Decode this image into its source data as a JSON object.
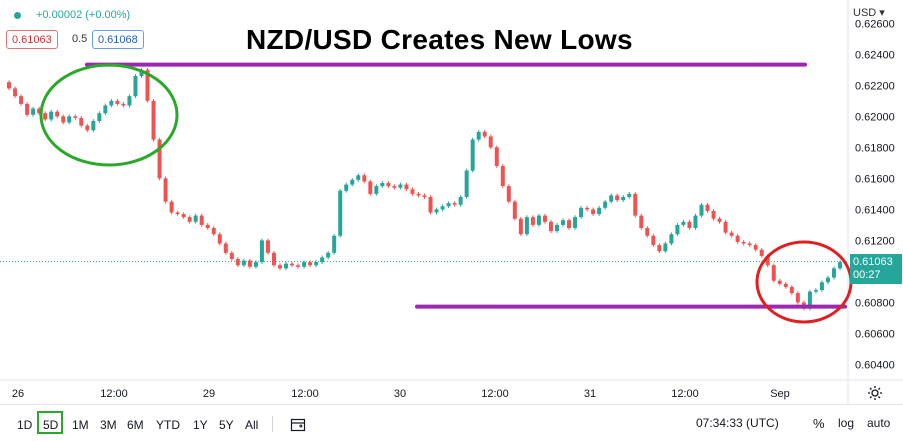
{
  "header": {
    "change": "+0.00002 (+0.00%)",
    "sell_price": "0.61063",
    "spread": "0.5",
    "buy_price": "0.61068"
  },
  "title": "NZD/USD Creates New Lows",
  "currency": "USD",
  "price_label": {
    "price": "0.61063",
    "countdown": "00:27"
  },
  "chart_data": {
    "type": "line",
    "title": "NZD/USD Creates New Lows",
    "xlabel": "",
    "ylabel": "",
    "ylim": [
      0.603,
      0.6275
    ],
    "y_ticks": [
      "0.62600",
      "0.62400",
      "0.62200",
      "0.62000",
      "0.61800",
      "0.61600",
      "0.61400",
      "0.61200",
      "0.61000",
      "0.60800",
      "0.60600",
      "0.60400"
    ],
    "x_ticks": [
      "26",
      "12:00",
      "29",
      "12:00",
      "30",
      "12:00",
      "31",
      "12:00",
      "Sep"
    ],
    "series": [
      {
        "values": [
          0.6222,
          0.6218,
          0.6213,
          0.6208,
          0.6201,
          0.6205,
          0.6202,
          0.6198,
          0.6203,
          0.62,
          0.6196,
          0.62,
          0.6199,
          0.6194,
          0.6191,
          0.6197,
          0.6202,
          0.6207,
          0.621,
          0.6208,
          0.6207,
          0.6213,
          0.6226,
          0.623,
          0.621,
          0.6185,
          0.616,
          0.6145,
          0.6138,
          0.6137,
          0.6135,
          0.6132,
          0.6136,
          0.613,
          0.6128,
          0.6124,
          0.6118,
          0.6112,
          0.6108,
          0.6104,
          0.6107,
          0.6103,
          0.6106,
          0.612,
          0.6112,
          0.6104,
          0.6102,
          0.6105,
          0.6104,
          0.6103,
          0.6106,
          0.6104,
          0.6106,
          0.6109,
          0.6112,
          0.6123,
          0.6152,
          0.6156,
          0.6159,
          0.6162,
          0.6158,
          0.615,
          0.6155,
          0.6157,
          0.6155,
          0.6154,
          0.6156,
          0.6153,
          0.615,
          0.6149,
          0.6148,
          0.6138,
          0.614,
          0.6142,
          0.6144,
          0.6143,
          0.6148,
          0.6165,
          0.6185,
          0.619,
          0.6187,
          0.618,
          0.6168,
          0.6155,
          0.6145,
          0.6134,
          0.6124,
          0.6135,
          0.613,
          0.6136,
          0.6132,
          0.6126,
          0.613,
          0.6133,
          0.6128,
          0.6135,
          0.6141,
          0.614,
          0.6137,
          0.6141,
          0.6145,
          0.6149,
          0.6146,
          0.6148,
          0.615,
          0.6136,
          0.6128,
          0.6123,
          0.6117,
          0.6113,
          0.6118,
          0.6124,
          0.613,
          0.6132,
          0.6128,
          0.6136,
          0.6143,
          0.6139,
          0.6134,
          0.6132,
          0.6125,
          0.6123,
          0.6119,
          0.6118,
          0.6117,
          0.6114,
          0.611,
          0.6104,
          0.6094,
          0.6092,
          0.609,
          0.6086,
          0.608,
          0.6076,
          0.6087,
          0.6088,
          0.6093,
          0.6096,
          0.6102,
          0.6106
        ]
      }
    ],
    "annotations": [
      {
        "type": "horizontal-line",
        "y": 0.62333,
        "color": "#9c27b0"
      },
      {
        "type": "horizontal-line",
        "y": 0.60773,
        "color": "#9c27b0"
      },
      {
        "type": "ellipse",
        "color": "#2aa82a"
      },
      {
        "type": "ellipse",
        "color": "#e02020"
      }
    ],
    "current_price": 0.61063,
    "grid": false
  },
  "colors": {
    "up": "#26a69a",
    "down": "#ef5350",
    "purple": "#9c27b0",
    "green_circle": "#2aa82a",
    "red_circle": "#e02020"
  },
  "bottom_bar": {
    "timeframes": [
      "1D",
      "5D",
      "1M",
      "3M",
      "6M",
      "YTD",
      "1Y",
      "5Y",
      "All"
    ],
    "selected": "5D",
    "time": "07:34:33 (UTC)",
    "percent": "%",
    "log": "log",
    "auto": "auto"
  },
  "icons": [
    "settings-icon",
    "calendar-range-icon"
  ]
}
